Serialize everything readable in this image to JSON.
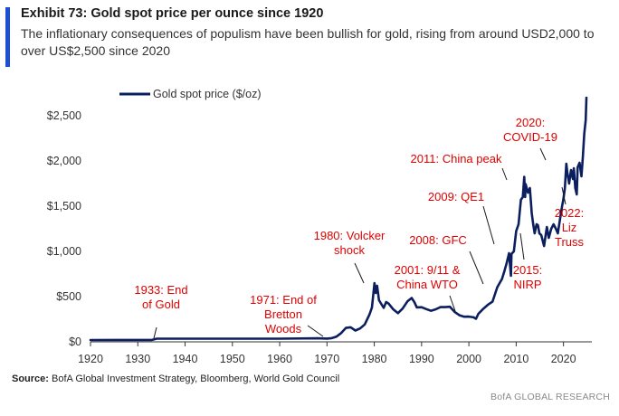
{
  "header": {
    "title": "Exhibit 73: Gold spot price per ounce since 1920",
    "subtitle": "The inflationary consequences of populism have been bullish for gold, rising from around USD2,000 to over US$2,500 since 2020"
  },
  "source": {
    "label": "Source:",
    "text": " BofA Global Investment Strategy, Bloomberg, World Gold Council"
  },
  "footer": "BofA GLOBAL RESEARCH",
  "colors": {
    "series": "#0b1f5e",
    "annotation": "#e00000",
    "accent": "#1a4fd6",
    "axis": "#333333"
  },
  "chart_data": {
    "type": "line",
    "title": "Exhibit 73: Gold spot price per ounce since 1920",
    "xlabel": "",
    "ylabel": "",
    "xlim": [
      1920,
      2026
    ],
    "ylim": [
      0,
      2500
    ],
    "x_ticks": [
      1920,
      1930,
      1940,
      1950,
      1960,
      1970,
      1980,
      1990,
      2000,
      2010,
      2020
    ],
    "y_ticks": [
      0,
      500,
      1000,
      1500,
      2000,
      2500
    ],
    "y_tick_labels": [
      "$0",
      "$500",
      "$1,000",
      "$1,500",
      "$2,000",
      "$2,500"
    ],
    "grid": false,
    "legend": "top-left",
    "series": [
      {
        "name": "Gold spot price ($/oz)",
        "x": [
          1920,
          1933,
          1934,
          1945,
          1960,
          1968,
          1970,
          1971,
          1972,
          1973,
          1974,
          1975,
          1976,
          1977,
          1978,
          1979,
          1979.5,
          1980.05,
          1980.3,
          1980.6,
          1981,
          1982,
          1982.5,
          1983,
          1984,
          1985,
          1986,
          1987,
          1987.9,
          1988.5,
          1989,
          1990,
          1991,
          1992,
          1993,
          1994,
          1995,
          1996,
          1997,
          1998,
          1999,
          2000,
          2001,
          2001.5,
          2002,
          2003,
          2004,
          2005,
          2006,
          2006.5,
          2007,
          2007.5,
          2008,
          2008.5,
          2008.9,
          2009,
          2009.5,
          2010,
          2010.5,
          2011,
          2011.4,
          2011.7,
          2011.9,
          2012,
          2012.5,
          2012.9,
          2013.3,
          2013.6,
          2013.9,
          2014.3,
          2014.6,
          2014.9,
          2015.3,
          2015.9,
          2016.5,
          2016.9,
          2017.4,
          2017.9,
          2018.4,
          2018.8,
          2019.4,
          2019.7,
          2020,
          2020.3,
          2020.6,
          2020.8,
          2021.2,
          2021.6,
          2022,
          2022.2,
          2022.5,
          2022.8,
          2023,
          2023.4,
          2023.8,
          2024.1,
          2024.4,
          2024.7,
          2024.85
        ],
        "values": [
          20,
          20.7,
          35,
          35,
          35,
          39,
          36,
          41,
          58,
          97,
          154,
          161,
          125,
          148,
          193,
          306,
          380,
          650,
          540,
          620,
          460,
          376,
          440,
          424,
          360,
          317,
          368,
          447,
          485,
          437,
          381,
          383,
          362,
          343,
          360,
          384,
          384,
          388,
          331,
          294,
          278,
          279,
          271,
          255,
          310,
          363,
          409,
          444,
          604,
          650,
          695,
          780,
          872,
          980,
          730,
          972,
          1000,
          1225,
          1300,
          1571,
          1600,
          1825,
          1600,
          1744,
          1650,
          1700,
          1420,
          1300,
          1200,
          1300,
          1290,
          1200,
          1180,
          1060,
          1270,
          1150,
          1250,
          1300,
          1250,
          1200,
          1400,
          1500,
          1580,
          1700,
          1970,
          1880,
          1750,
          1900,
          1800,
          1920,
          1700,
          1630,
          1930,
          1980,
          1830,
          2050,
          2300,
          2450,
          2700
        ]
      }
    ],
    "annotations": [
      {
        "lines": [
          "1933: End",
          "of Gold"
        ],
        "x": 1933
      },
      {
        "lines": [
          "1971: End of",
          "Bretton",
          "Woods"
        ],
        "x": 1971
      },
      {
        "lines": [
          "1980: Volcker",
          "shock"
        ],
        "x": 1980
      },
      {
        "lines": [
          "2001: 9/11 &",
          "China WTO"
        ],
        "x": 2001
      },
      {
        "lines": [
          "2008: GFC"
        ],
        "x": 2008
      },
      {
        "lines": [
          "2009: QE1"
        ],
        "x": 2009
      },
      {
        "lines": [
          "2011: China peak"
        ],
        "x": 2011
      },
      {
        "lines": [
          "2015:",
          "NIRP"
        ],
        "x": 2015
      },
      {
        "lines": [
          "2020:",
          "COVID-19"
        ],
        "x": 2020
      },
      {
        "lines": [
          "2022:",
          "Liz",
          "Truss"
        ],
        "x": 2022
      }
    ]
  }
}
